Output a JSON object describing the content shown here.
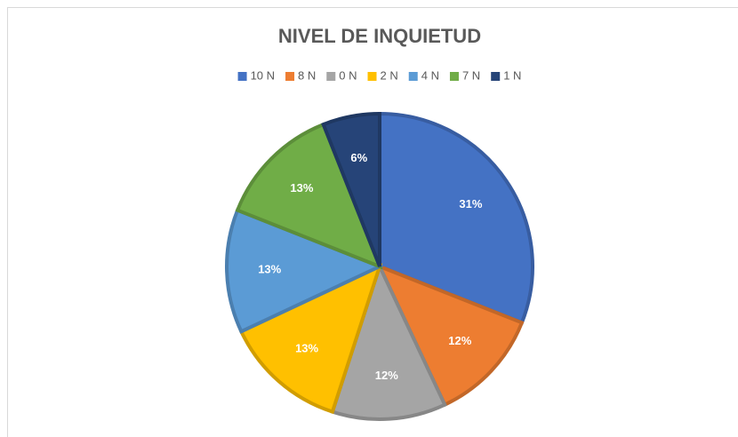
{
  "chart_data": {
    "type": "pie",
    "title": "NIVEL DE INQUIETUD",
    "categories": [
      "10 N",
      "8 N",
      "0 N",
      "2 N",
      "4 N",
      "7 N",
      "1 N"
    ],
    "values": [
      31,
      12,
      12,
      13,
      13,
      13,
      6
    ],
    "value_labels": [
      "31%",
      "12%",
      "12%",
      "13%",
      "13%",
      "13%",
      "6%"
    ],
    "colors": [
      "#4472c4",
      "#ed7d31",
      "#a5a5a5",
      "#ffc000",
      "#5b9bd5",
      "#70ad47",
      "#264478"
    ],
    "legend": "top"
  }
}
